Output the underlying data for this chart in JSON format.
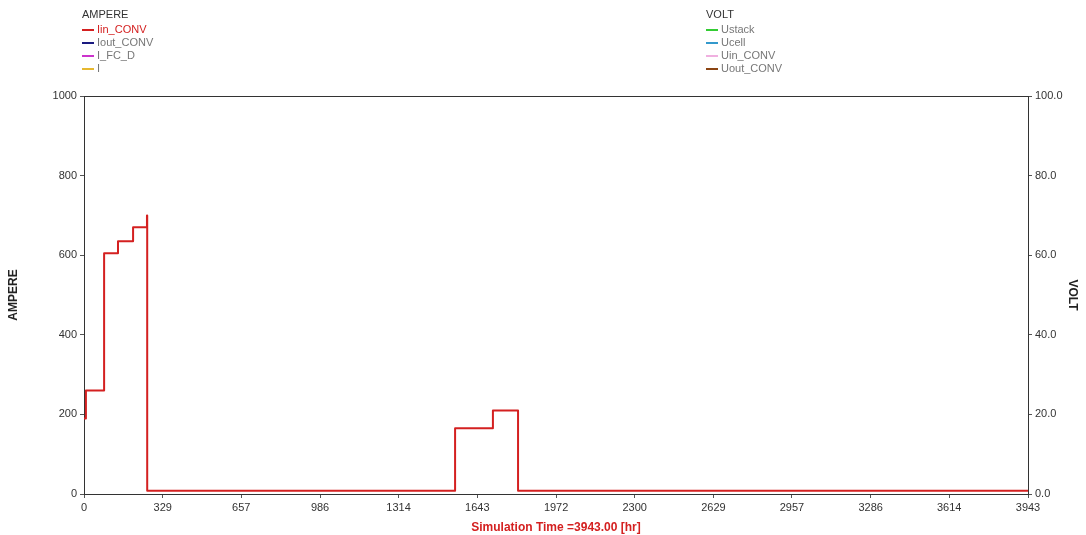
{
  "chart_data": {
    "type": "step",
    "xlabel": "Simulation Time =3943.00 [hr]",
    "ylabel": "AMPERE",
    "y2label": "VOLT",
    "xlim": [
      0,
      3943
    ],
    "xticks": [
      0,
      329,
      657,
      986,
      1314,
      1643,
      1972,
      2300,
      2629,
      2957,
      3286,
      3614,
      3943
    ],
    "ylim": [
      0,
      1000
    ],
    "yticks": [
      0,
      200,
      400,
      600,
      800,
      1000
    ],
    "y2lim": [
      0,
      100
    ],
    "y2ticks": [
      {
        "value": 0,
        "label": "0.0"
      },
      {
        "value": 20,
        "label": "20.0"
      },
      {
        "value": 40,
        "label": "40.0"
      },
      {
        "value": 60,
        "label": "60.0"
      },
      {
        "value": 80,
        "label": "80.0"
      },
      {
        "value": 100,
        "label": "100.0"
      }
    ],
    "grid": false,
    "legend": "top",
    "marker": "none",
    "line_style": "solid",
    "series": [
      {
        "name": "Iin_CONV",
        "color": "#d42020",
        "x": [
          0,
          8,
          84,
          142,
          205,
          263,
          264,
          1550,
          1708,
          1813,
          3943
        ],
        "values": [
          190,
          260,
          605,
          635,
          670,
          700,
          8,
          165,
          210,
          8,
          8
        ]
      },
      {
        "name": "Iout_CONV",
        "color": "#1a1a80"
      },
      {
        "name": "I_FC_D",
        "color": "#cc33cc"
      },
      {
        "name": "I",
        "color": "#e6b830"
      },
      {
        "name": "Ustack",
        "color": "#33cc33",
        "axis": "y2"
      },
      {
        "name": "Ucell",
        "color": "#3399cc",
        "axis": "y2"
      },
      {
        "name": "Uin_CONV",
        "color": "#f0b0e0",
        "axis": "y2"
      },
      {
        "name": "Uout_CONV",
        "color": "#8b4513",
        "axis": "y2"
      }
    ]
  }
}
